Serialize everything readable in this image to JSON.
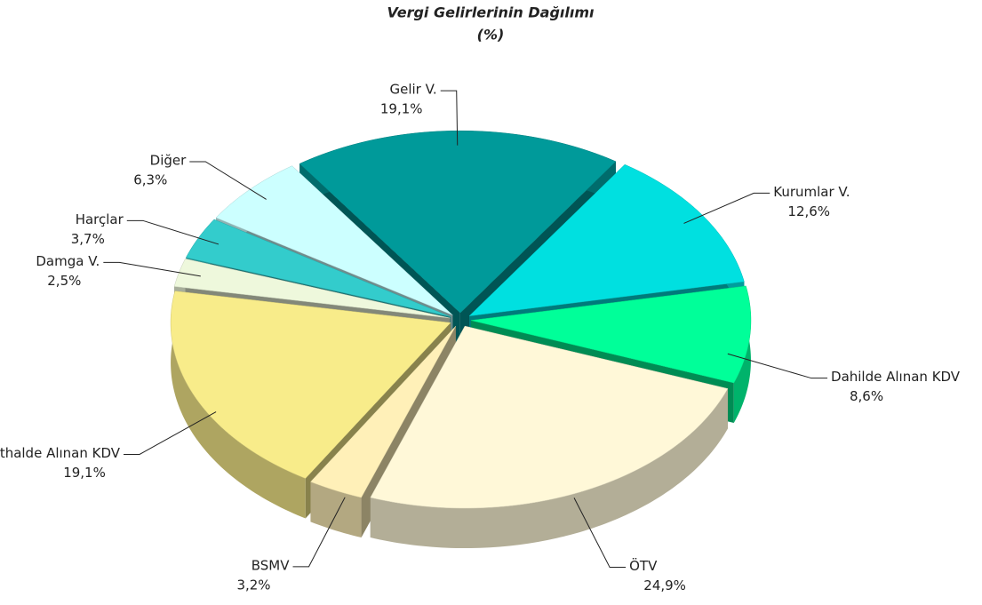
{
  "chart_data": {
    "type": "pie",
    "title": "Vergi Gelirlerinin Dağılımı",
    "subtitle": "(%)",
    "categories": [
      "Gelir V.",
      "Kurumlar V.",
      "Dahilde Alınan KDV",
      "ÖTV",
      "BSMV",
      "İthalde Alınan KDV",
      "Damga V.",
      "Harçlar",
      "Diğer"
    ],
    "values": [
      19.1,
      12.6,
      8.6,
      24.9,
      3.2,
      19.1,
      2.5,
      3.7,
      6.3
    ],
    "value_labels": [
      "19,1%",
      "12,6%",
      "8,6%",
      "24,9%",
      "3,2%",
      "19,1%",
      "2,5%",
      "3,7%",
      "6,3%"
    ],
    "colors": [
      "#009a9a",
      "#00e0e0",
      "#00ff99",
      "#fff8d8",
      "#fff0b8",
      "#f8ec8a",
      "#eef8dc",
      "#33cccc",
      "#ccffff"
    ]
  }
}
